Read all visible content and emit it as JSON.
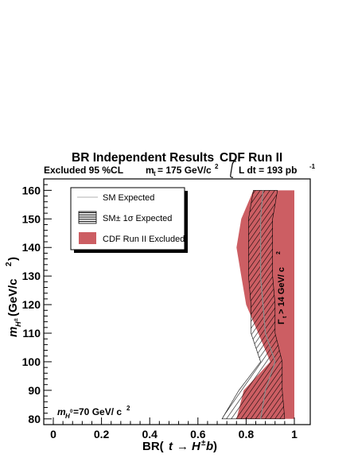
{
  "chart_data": {
    "type": "area",
    "title": "BR Independent Results",
    "experiment": "CDF Run II",
    "subtitle_left": "Excluded 95 %CL",
    "subtitle_mid_prefix": "m",
    "subtitle_mid_sub": "t",
    "subtitle_mid_suffix": "= 175 GeV/c",
    "subtitle_mid_sup": "2",
    "subtitle_right_prefix": "L dt = 193 pb",
    "subtitle_right_sup": "-1",
    "xlabel_prefix": "BR(",
    "xlabel_t": "t",
    "xlabel_arrow": "→",
    "xlabel_H": "H",
    "xlabel_pm": "±",
    "xlabel_b": "b",
    "xlabel_suffix": ")",
    "ylabel_m": "m",
    "ylabel_sub": "H",
    "ylabel_subsup": "±",
    "ylabel_unit": " (GeV/c",
    "ylabel_unit_sup": "2",
    "ylabel_close": ")",
    "xlim": [
      0,
      1
    ],
    "ylim": [
      78,
      164
    ],
    "x_ticks": [
      0,
      0.2,
      0.4,
      0.6,
      0.8,
      1
    ],
    "x_tick_labels": [
      "0",
      "0.2",
      "0.4",
      "0.6",
      "0.8",
      "1"
    ],
    "y_ticks": [
      80,
      90,
      100,
      110,
      120,
      130,
      140,
      150,
      160
    ],
    "y_tick_labels": [
      "80",
      "90",
      "100",
      "110",
      "120",
      "130",
      "140",
      "150",
      "160"
    ],
    "annotation_mass_prefix": "m",
    "annotation_mass_sub": "H",
    "annotation_mass_subsup": "0",
    "annotation_mass_suffix": "=70 GeV/  c",
    "annotation_mass_sup": "2",
    "annotation_width_prefix": "Γ",
    "annotation_width_sub": "t",
    "annotation_width_suffix": "> 14 GeV/ c",
    "annotation_width_sup": "2",
    "legend": {
      "position": "top-left",
      "entries": [
        {
          "label": "SM Expected",
          "style": "line"
        },
        {
          "label": "SM± 1σ Expected",
          "style": "hatched"
        },
        {
          "label": "CDF Run II Excluded",
          "style": "filled"
        }
      ]
    },
    "colors": {
      "excluded": "#cc5e63",
      "hatch": "#000000",
      "expected_line": "#8a8a8a",
      "legend_line": "#b0b0b0"
    },
    "series": [
      {
        "name": "CDF Run II Excluded",
        "mass": [
          80,
          90,
          100,
          110,
          120,
          130,
          140,
          150,
          160
        ],
        "br_lower": [
          0.76,
          0.79,
          0.9,
          0.85,
          0.8,
          0.78,
          0.76,
          0.78,
          0.83
        ],
        "br_upper": [
          1,
          1,
          1,
          1,
          1,
          1,
          1,
          1,
          1
        ]
      },
      {
        "name": "SM± 1σ Expected",
        "mass": [
          80,
          90,
          100,
          110,
          120,
          130,
          140,
          150,
          160
        ],
        "br_lower": [
          0.7,
          0.77,
          0.86,
          0.82,
          0.82,
          0.81,
          0.81,
          0.81,
          0.83
        ],
        "br_upper": [
          0.96,
          0.95,
          0.95,
          0.92,
          0.92,
          0.91,
          0.91,
          0.91,
          0.93
        ]
      },
      {
        "name": "SM Expected",
        "mass": [
          80,
          90,
          100,
          110,
          120,
          130,
          140,
          150,
          160
        ],
        "br": [
          0.86,
          0.88,
          0.92,
          0.88,
          0.87,
          0.86,
          0.86,
          0.86,
          0.87
        ]
      }
    ]
  }
}
